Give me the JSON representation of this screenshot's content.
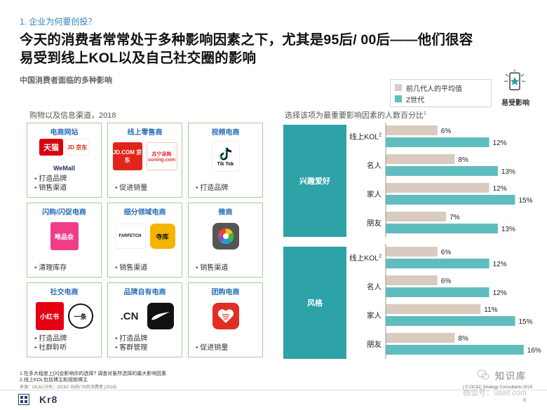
{
  "section_label": "1. 企业为何要创投？",
  "headline_line1": "今天的消费者常常处于多种影响因素之下，尤其是95后/ 00后——他们很容",
  "headline_line2": "易受到线上KOL以及自己社交圈的影响",
  "subtitle": "中国消费者面临的多种影响",
  "badge_label": "易受影响",
  "grid_title": "购物以及信息渠道，2018",
  "channels": [
    {
      "title": "电商网站",
      "logos": [
        "天猫",
        "JD 京东",
        "WeMall"
      ],
      "bullets": [
        "打造品牌",
        "销售渠道"
      ]
    },
    {
      "title": "线上零售商",
      "logos": [
        "JD.COM 京东",
        "苏宁易购 suning.com"
      ],
      "bullets": [
        "促进销量"
      ]
    },
    {
      "title": "视频电商",
      "logos": [
        "Tik Tok"
      ],
      "bullets": [
        "打造品牌"
      ]
    },
    {
      "title": "闪购/闪促电商",
      "logos": [
        "唯品会"
      ],
      "bullets": [
        "清理库存"
      ]
    },
    {
      "title": "细分领域电商",
      "logos": [
        "FARFETCH",
        "寺库"
      ],
      "bullets": [
        "销售渠道"
      ]
    },
    {
      "title": "微商",
      "logos": [],
      "bullets": [
        "销售渠道"
      ]
    },
    {
      "title": "社交电商",
      "logos": [
        "小红书",
        "一条"
      ],
      "bullets": [
        "打造品牌",
        "社群聆听"
      ]
    },
    {
      "title": "品牌自有电商",
      "logos": [
        ".CN"
      ],
      "bullets": [
        "打造品牌",
        "客群管理"
      ]
    },
    {
      "title": "团购电商",
      "logos": [],
      "bullets": [
        "促进销量"
      ]
    }
  ],
  "chart_data": {
    "type": "bar",
    "orientation": "horizontal",
    "title": "选择该项为最重要影响因素的人数百分比",
    "title_sup": "1",
    "legend_placement": "top-right",
    "groups": [
      {
        "label": "兴趣爱好",
        "categories": [
          "线上KOL",
          "名人",
          "家人",
          "朋友"
        ],
        "series": [
          {
            "name": "前几代人的平均值",
            "values": [
              6,
              8,
              12,
              7
            ]
          },
          {
            "name": "Z世代",
            "values": [
              12,
              13,
              15,
              13
            ]
          }
        ]
      },
      {
        "label": "风格",
        "categories": [
          "线上KOL",
          "名人",
          "家人",
          "朋友"
        ],
        "series": [
          {
            "name": "前几代人的平均值",
            "values": [
              6,
              6,
              11,
              8
            ]
          },
          {
            "name": "Z世代",
            "values": [
              12,
              12,
              15,
              16
            ]
          }
        ]
      }
    ],
    "category_sup": {
      "线上KOL": "2"
    },
    "value_suffix": "%",
    "colors": {
      "前几代人的平均值": "#d9cbbf",
      "Z世代": "#5fbdbf"
    },
    "xlim": [
      0,
      16
    ]
  },
  "footnotes": [
    "1.在多大程度上[X]会影响你的选择? 调查对象所选择的最大影响因素",
    "2.线上KOL包括博主和视频博主"
  ],
  "source": "来源：OC&C分析；OC&C 95后/ 00后消费者 (2018)",
  "brand": "Kr8",
  "copyright": "| © OC&C Strategy Consultants 2019",
  "page_number": "8",
  "watermark_title": "知识库",
  "watermark_sub": "微信号：useit.com"
}
